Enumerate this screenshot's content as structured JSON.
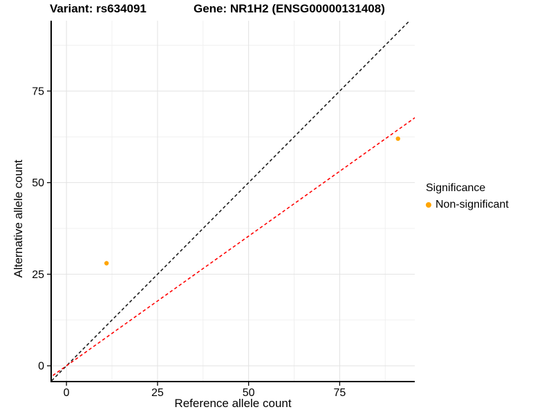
{
  "header": {
    "variant_title": "Variant: rs634091",
    "gene_title": "Gene: NR1H2 (ENSG00000131408)"
  },
  "legend": {
    "title": "Significance",
    "items": [
      {
        "label": "Non-significant",
        "color": "#FFA500"
      }
    ]
  },
  "chart_data": {
    "type": "scatter",
    "title": "Variant: rs634091  Gene: NR1H2 (ENSG00000131408)",
    "xlabel": "Reference allele count",
    "ylabel": "Alternative allele count",
    "xlim": [
      -4.2,
      95.6
    ],
    "ylim": [
      -4.3,
      94.2
    ],
    "x_ticks": [
      0,
      25,
      50,
      75
    ],
    "y_ticks": [
      0,
      25,
      50,
      75
    ],
    "x_minor_ticks": [
      12.5,
      37.5,
      62.5,
      87.5
    ],
    "y_minor_ticks": [
      12.5,
      37.5,
      62.5,
      87.5
    ],
    "grid": {
      "major_color": "#E2E2E2",
      "minor_color": "#F0F0F0"
    },
    "axis_color": "#000000",
    "background": "#FFFFFF",
    "legend_position": "right",
    "point_color": "#FFA500",
    "point_radius": 3.2,
    "points": [
      {
        "x": 11,
        "y": 28,
        "series": "Non-significant"
      },
      {
        "x": 91,
        "y": 62,
        "series": "Non-significant"
      }
    ],
    "lines": [
      {
        "name": "identity-line",
        "slope": 1.0,
        "intercept": 0,
        "color": "#1A1A1A",
        "style": "dashed"
      },
      {
        "name": "fit-line",
        "slope": 0.708,
        "intercept": 0,
        "color": "#FF0000",
        "style": "dashed"
      }
    ]
  }
}
